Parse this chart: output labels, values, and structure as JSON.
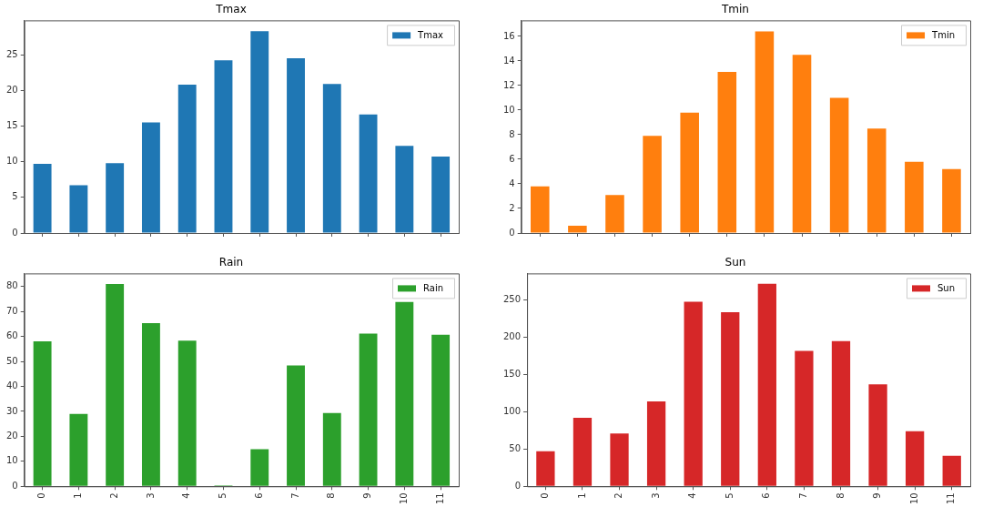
{
  "chart_data": [
    {
      "type": "bar",
      "title": "Tmax",
      "categories": [
        "0",
        "1",
        "2",
        "3",
        "4",
        "5",
        "6",
        "7",
        "8",
        "9",
        "10",
        "11"
      ],
      "series": [
        {
          "name": "Tmax",
          "color": "#1f77b4",
          "values": [
            9.7,
            6.7,
            9.8,
            15.5,
            20.8,
            24.2,
            28.3,
            24.5,
            20.9,
            16.6,
            12.2,
            10.7
          ]
        }
      ],
      "ylim": [
        0,
        29.8
      ],
      "yticks": [
        0,
        5,
        10,
        15,
        20,
        25
      ],
      "grid": false,
      "legend": "top right",
      "tick_labels": "y"
    },
    {
      "type": "bar",
      "title": "Tmin",
      "categories": [
        "0",
        "1",
        "2",
        "3",
        "4",
        "5",
        "6",
        "7",
        "8",
        "9",
        "10",
        "11"
      ],
      "series": [
        {
          "name": "Tmin",
          "color": "#ff7f0e",
          "values": [
            3.8,
            0.6,
            3.1,
            7.9,
            9.8,
            13.1,
            16.4,
            14.5,
            11.0,
            8.5,
            5.8,
            5.2
          ]
        }
      ],
      "ylim": [
        0,
        17.3
      ],
      "yticks": [
        0,
        2,
        4,
        6,
        8,
        10,
        12,
        14,
        16
      ],
      "grid": false,
      "legend": "top right",
      "tick_labels": "y"
    },
    {
      "type": "bar",
      "title": "Rain",
      "categories": [
        "0",
        "1",
        "2",
        "3",
        "4",
        "5",
        "6",
        "7",
        "8",
        "9",
        "10",
        "11"
      ],
      "series": [
        {
          "name": "Rain",
          "color": "#2ca02c",
          "values": [
            58.0,
            29.0,
            81.0,
            65.3,
            58.3,
            0.4,
            14.9,
            48.4,
            29.3,
            61.1,
            73.8,
            60.7
          ]
        }
      ],
      "ylim": [
        0,
        85.2
      ],
      "yticks": [
        0,
        10,
        20,
        30,
        40,
        50,
        60,
        70,
        80
      ],
      "grid": false,
      "legend": "top right"
    },
    {
      "type": "bar",
      "title": "Sun",
      "categories": [
        "0",
        "1",
        "2",
        "3",
        "4",
        "5",
        "6",
        "7",
        "8",
        "9",
        "10",
        "11"
      ],
      "series": [
        {
          "name": "Sun",
          "color": "#d62728",
          "values": [
            47,
            92,
            71,
            114,
            248,
            234,
            272,
            182,
            195,
            137,
            74,
            41
          ]
        }
      ],
      "ylim": [
        0,
        286
      ],
      "yticks": [
        0,
        50,
        100,
        150,
        200,
        250
      ],
      "grid": false,
      "legend": "top right"
    }
  ]
}
